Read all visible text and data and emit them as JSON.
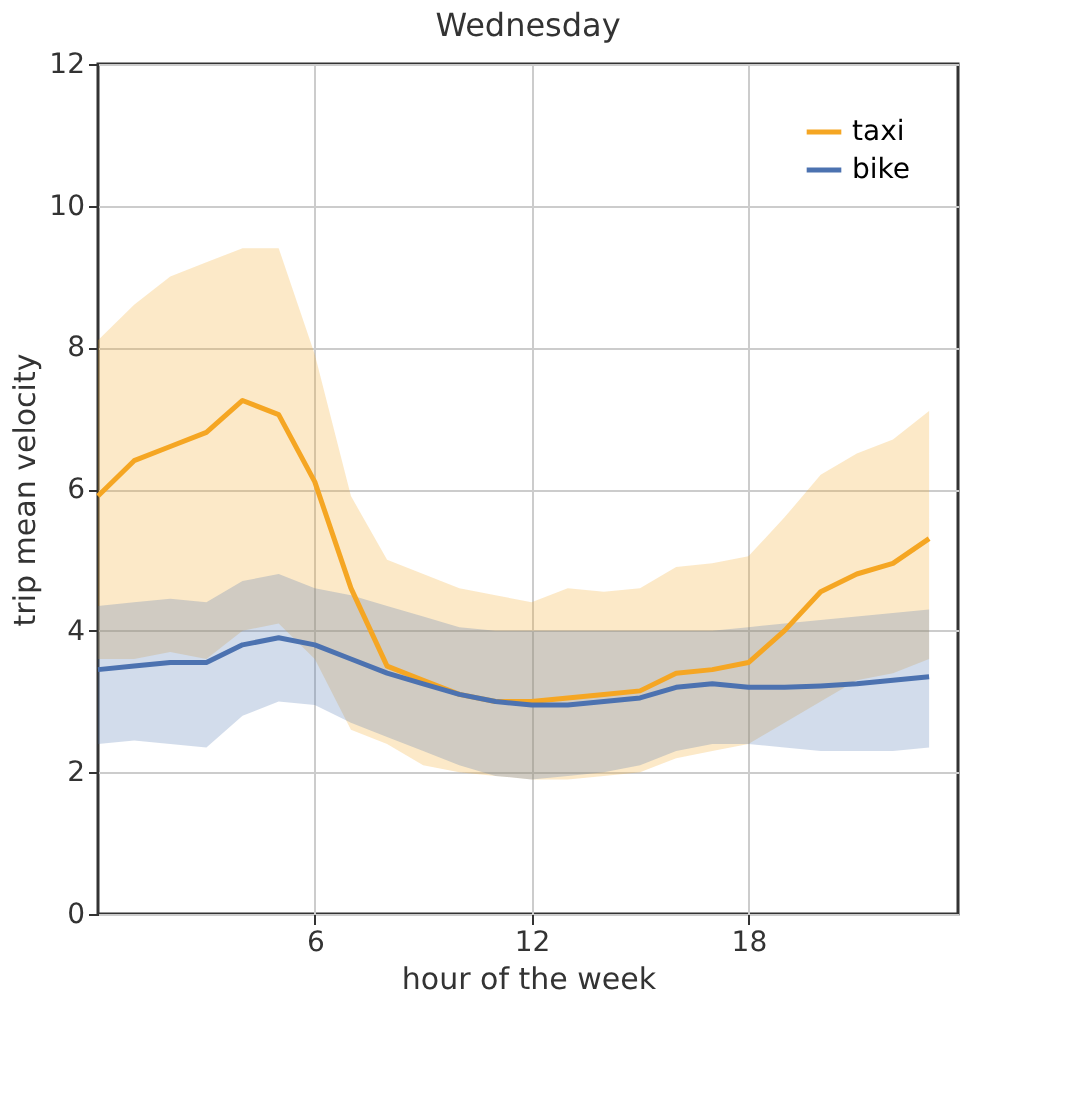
{
  "chart_data": {
    "type": "line",
    "title": "Wednesday",
    "xlabel": "hour of the week",
    "ylabel": "trip mean velocity",
    "x": [
      0,
      1,
      2,
      3,
      4,
      5,
      6,
      7,
      8,
      9,
      10,
      11,
      12,
      13,
      14,
      15,
      16,
      17,
      18,
      19,
      20,
      21,
      22,
      23
    ],
    "series": [
      {
        "name": "taxi",
        "color": "#f5a623",
        "values": [
          5.9,
          6.4,
          6.6,
          6.8,
          7.25,
          7.05,
          6.1,
          4.6,
          3.5,
          3.3,
          3.1,
          3.0,
          3.0,
          3.05,
          3.1,
          3.15,
          3.4,
          3.45,
          3.55,
          4.0,
          4.55,
          4.8,
          4.95,
          5.3
        ],
        "upper": [
          8.1,
          8.6,
          9.0,
          9.2,
          9.4,
          9.4,
          7.9,
          5.9,
          5.0,
          4.8,
          4.6,
          4.5,
          4.4,
          4.6,
          4.55,
          4.6,
          4.9,
          4.95,
          5.05,
          5.6,
          6.2,
          6.5,
          6.7,
          7.1
        ],
        "lower": [
          3.6,
          3.6,
          3.7,
          3.6,
          4.0,
          4.1,
          3.6,
          2.6,
          2.4,
          2.1,
          2.0,
          1.95,
          1.9,
          1.9,
          1.95,
          2.0,
          2.2,
          2.3,
          2.4,
          2.7,
          3.0,
          3.3,
          3.4,
          3.6
        ]
      },
      {
        "name": "bike",
        "color": "#4c72b0",
        "values": [
          3.45,
          3.5,
          3.55,
          3.55,
          3.8,
          3.9,
          3.8,
          3.6,
          3.4,
          3.25,
          3.1,
          3.0,
          2.95,
          2.95,
          3.0,
          3.05,
          3.2,
          3.25,
          3.2,
          3.2,
          3.22,
          3.25,
          3.3,
          3.35
        ],
        "upper": [
          4.35,
          4.4,
          4.45,
          4.4,
          4.7,
          4.8,
          4.6,
          4.5,
          4.35,
          4.2,
          4.05,
          4.0,
          4.0,
          4.0,
          4.0,
          4.0,
          4.0,
          4.0,
          4.05,
          4.1,
          4.15,
          4.2,
          4.25,
          4.3
        ],
        "lower": [
          2.4,
          2.45,
          2.4,
          2.35,
          2.8,
          3.0,
          2.95,
          2.7,
          2.5,
          2.3,
          2.1,
          1.95,
          1.9,
          1.95,
          2.0,
          2.1,
          2.3,
          2.4,
          2.4,
          2.35,
          2.3,
          2.3,
          2.3,
          2.35
        ]
      }
    ],
    "xlim": [
      0,
      23.8
    ],
    "xticks": [
      6,
      12,
      18
    ],
    "ylim": [
      0,
      12
    ],
    "yticks": [
      0,
      2,
      4,
      6,
      8,
      10,
      12
    ],
    "grid": true,
    "legend": "top right",
    "marker": "none",
    "line_style": "solid"
  }
}
